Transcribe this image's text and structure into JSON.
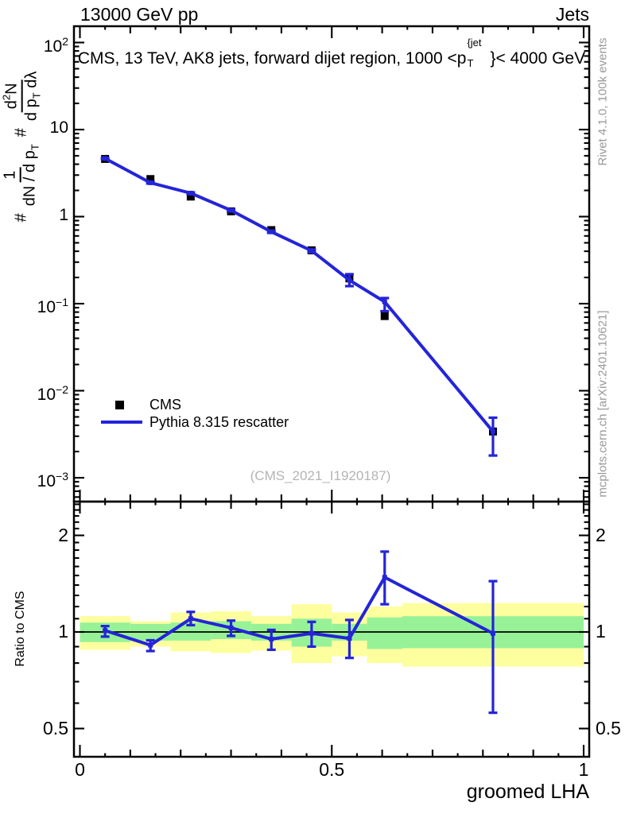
{
  "header": {
    "left": "13000 GeV pp",
    "right": "Jets"
  },
  "title": {
    "pre": "CMS, 13 TeV, AK8 jets, forward dijet region, 1000 <p",
    "sup": "{jet",
    "sub": "T",
    "post": "}< 4000 GeV"
  },
  "y_axis_formula": {
    "hash1": "#",
    "f1_num": "1",
    "f1_den": "dN / d p",
    "f1_den_sub": "T",
    "hash2": "#",
    "f2_num_pre": "d",
    "f2_num_sup": "2",
    "f2_num_post": "N",
    "f2_den_pre": "d p",
    "f2_den_sub": "T",
    "f2_den_post": " dλ"
  },
  "legend": {
    "cms": "CMS",
    "mc": "Pythia 8.315 rescatter"
  },
  "watermark": "(CMS_2021_I1920187)",
  "credits": {
    "top": "Rivet 4.1.0, 100k events",
    "bottom": "mcplots.cern.ch [arXiv:2401.10621]"
  },
  "ratio_axis_label": "Ratio to CMS",
  "x_axis_label": "groomed LHA",
  "colors": {
    "mc": "#2424d9",
    "yellow": "#fdff9e",
    "green": "#97f297",
    "watermark": "#b4b4b4",
    "credits": "#999999",
    "axis": "#000000"
  },
  "chart_data": {
    "type": "line",
    "title": "CMS, 13 TeV, AK8 jets, forward dijet region, 1000 <p_T^{jet}< 4000 GeV",
    "xlabel": "groomed LHA",
    "ylabel": "# 1/(dN/dp_T) # d2N/(dp_T dλ)",
    "legend_position": "middle-left",
    "grid": false,
    "x": [
      0.05,
      0.14,
      0.22,
      0.3,
      0.38,
      0.46,
      0.535,
      0.605,
      0.82
    ],
    "series": [
      {
        "name": "CMS",
        "type": "scatter",
        "marker": "filled-square",
        "color": "#000000",
        "values": [
          4.6,
          2.7,
          1.7,
          1.15,
          0.7,
          0.41,
          0.195,
          0.072,
          0.0034
        ]
      },
      {
        "name": "Pythia 8.315 rescatter",
        "type": "line",
        "color": "#2424d9",
        "values": [
          4.65,
          2.45,
          1.86,
          1.18,
          0.67,
          0.405,
          0.186,
          0.105,
          0.0034
        ],
        "err_lo": [
          0.07,
          0.05,
          0.04,
          0.03,
          0.02,
          0.015,
          0.027,
          0.023,
          0.0016
        ],
        "err_hi": [
          0.07,
          0.05,
          0.04,
          0.03,
          0.02,
          0.015,
          0.032,
          0.011,
          0.0015
        ]
      }
    ],
    "main_axis": {
      "x_range": [
        -0.012,
        1.011
      ],
      "y_log_range": [
        0.00053,
        154
      ],
      "x_ticks": [
        0,
        0.5,
        1
      ],
      "x_tick_labels": [
        "0",
        "0.5",
        "1"
      ],
      "x_minor_step": 0.1,
      "x_sub_minor_step": 0.05,
      "y_tick_labels": [
        {
          "v": 100,
          "base": "10",
          "exp": "2"
        },
        {
          "v": 10,
          "base": "10",
          "exp": ""
        },
        {
          "v": 1,
          "base": "1",
          "exp": ""
        },
        {
          "v": 0.1,
          "base": "10",
          "exp": "−1"
        },
        {
          "v": 0.01,
          "base": "10",
          "exp": "−2"
        },
        {
          "v": 0.001,
          "base": "10",
          "exp": "−3"
        }
      ]
    },
    "ratio_panel": {
      "ylabel": "Ratio to CMS",
      "y_log_range": [
        0.41,
        2.55
      ],
      "baseline": 1,
      "y_ticks": [
        {
          "v": 2,
          "label": "2"
        },
        {
          "v": 1,
          "label": "1"
        },
        {
          "v": 0.5,
          "label": "0.5"
        }
      ],
      "points": {
        "x": [
          0.05,
          0.14,
          0.22,
          0.3,
          0.38,
          0.46,
          0.535,
          0.605,
          0.82
        ],
        "r": [
          1.01,
          0.91,
          1.1,
          1.03,
          0.95,
          0.99,
          0.955,
          1.48,
          0.99
        ],
        "err_hi": [
          0.033,
          0.032,
          0.055,
          0.055,
          0.065,
          0.085,
          0.135,
          0.3,
          0.45
        ],
        "err_lo": [
          0.043,
          0.038,
          0.05,
          0.058,
          0.07,
          0.09,
          0.125,
          0.26,
          0.43
        ]
      },
      "bands": {
        "bin_edges": [
          0,
          0.1,
          0.18,
          0.26,
          0.34,
          0.42,
          0.5,
          0.57,
          0.64,
          1.0
        ],
        "yellow_lo": [
          0.88,
          0.9,
          0.87,
          0.86,
          0.875,
          0.8,
          0.84,
          0.8,
          0.78
        ],
        "yellow_hi": [
          1.12,
          1.08,
          1.15,
          1.16,
          1.12,
          1.22,
          1.15,
          1.2,
          1.23
        ],
        "green_lo": [
          0.93,
          0.94,
          0.94,
          0.95,
          0.94,
          0.9,
          0.94,
          0.885,
          0.89
        ],
        "green_hi": [
          1.07,
          1.06,
          1.07,
          1.08,
          1.06,
          1.1,
          1.06,
          1.11,
          1.12
        ]
      }
    }
  }
}
